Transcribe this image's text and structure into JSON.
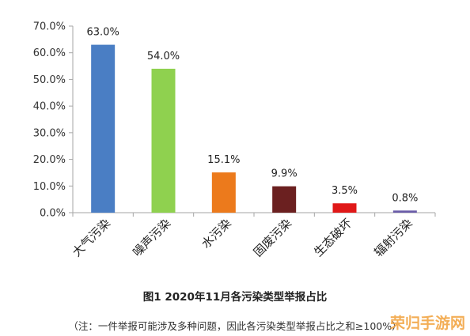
{
  "chart_data": {
    "type": "bar",
    "categories": [
      "大气污染",
      "噪声污染",
      "水污染",
      "固废污染",
      "生态破坏",
      "辐射污染"
    ],
    "values": [
      63.0,
      54.0,
      15.1,
      9.9,
      3.5,
      0.8
    ],
    "value_labels": [
      "63.0%",
      "54.0%",
      "15.1%",
      "9.9%",
      "3.5%",
      "0.8%"
    ],
    "colors": [
      "#4a7ec4",
      "#8fd14f",
      "#ec7a1c",
      "#6b2020",
      "#e01818",
      "#6a5ca8"
    ],
    "y_ticks": [
      "0.0%",
      "10.0%",
      "20.0%",
      "30.0%",
      "40.0%",
      "50.0%",
      "60.0%",
      "70.0%"
    ],
    "ylim": [
      0,
      70
    ],
    "grid": false,
    "legend": "none",
    "title": "图1 2020年11月各污染类型举报占比",
    "note": "（注：一件举报可能涉及多种问题，因此各污染类型举报占比之和≥100%）",
    "watermark": "荣归手游网"
  }
}
